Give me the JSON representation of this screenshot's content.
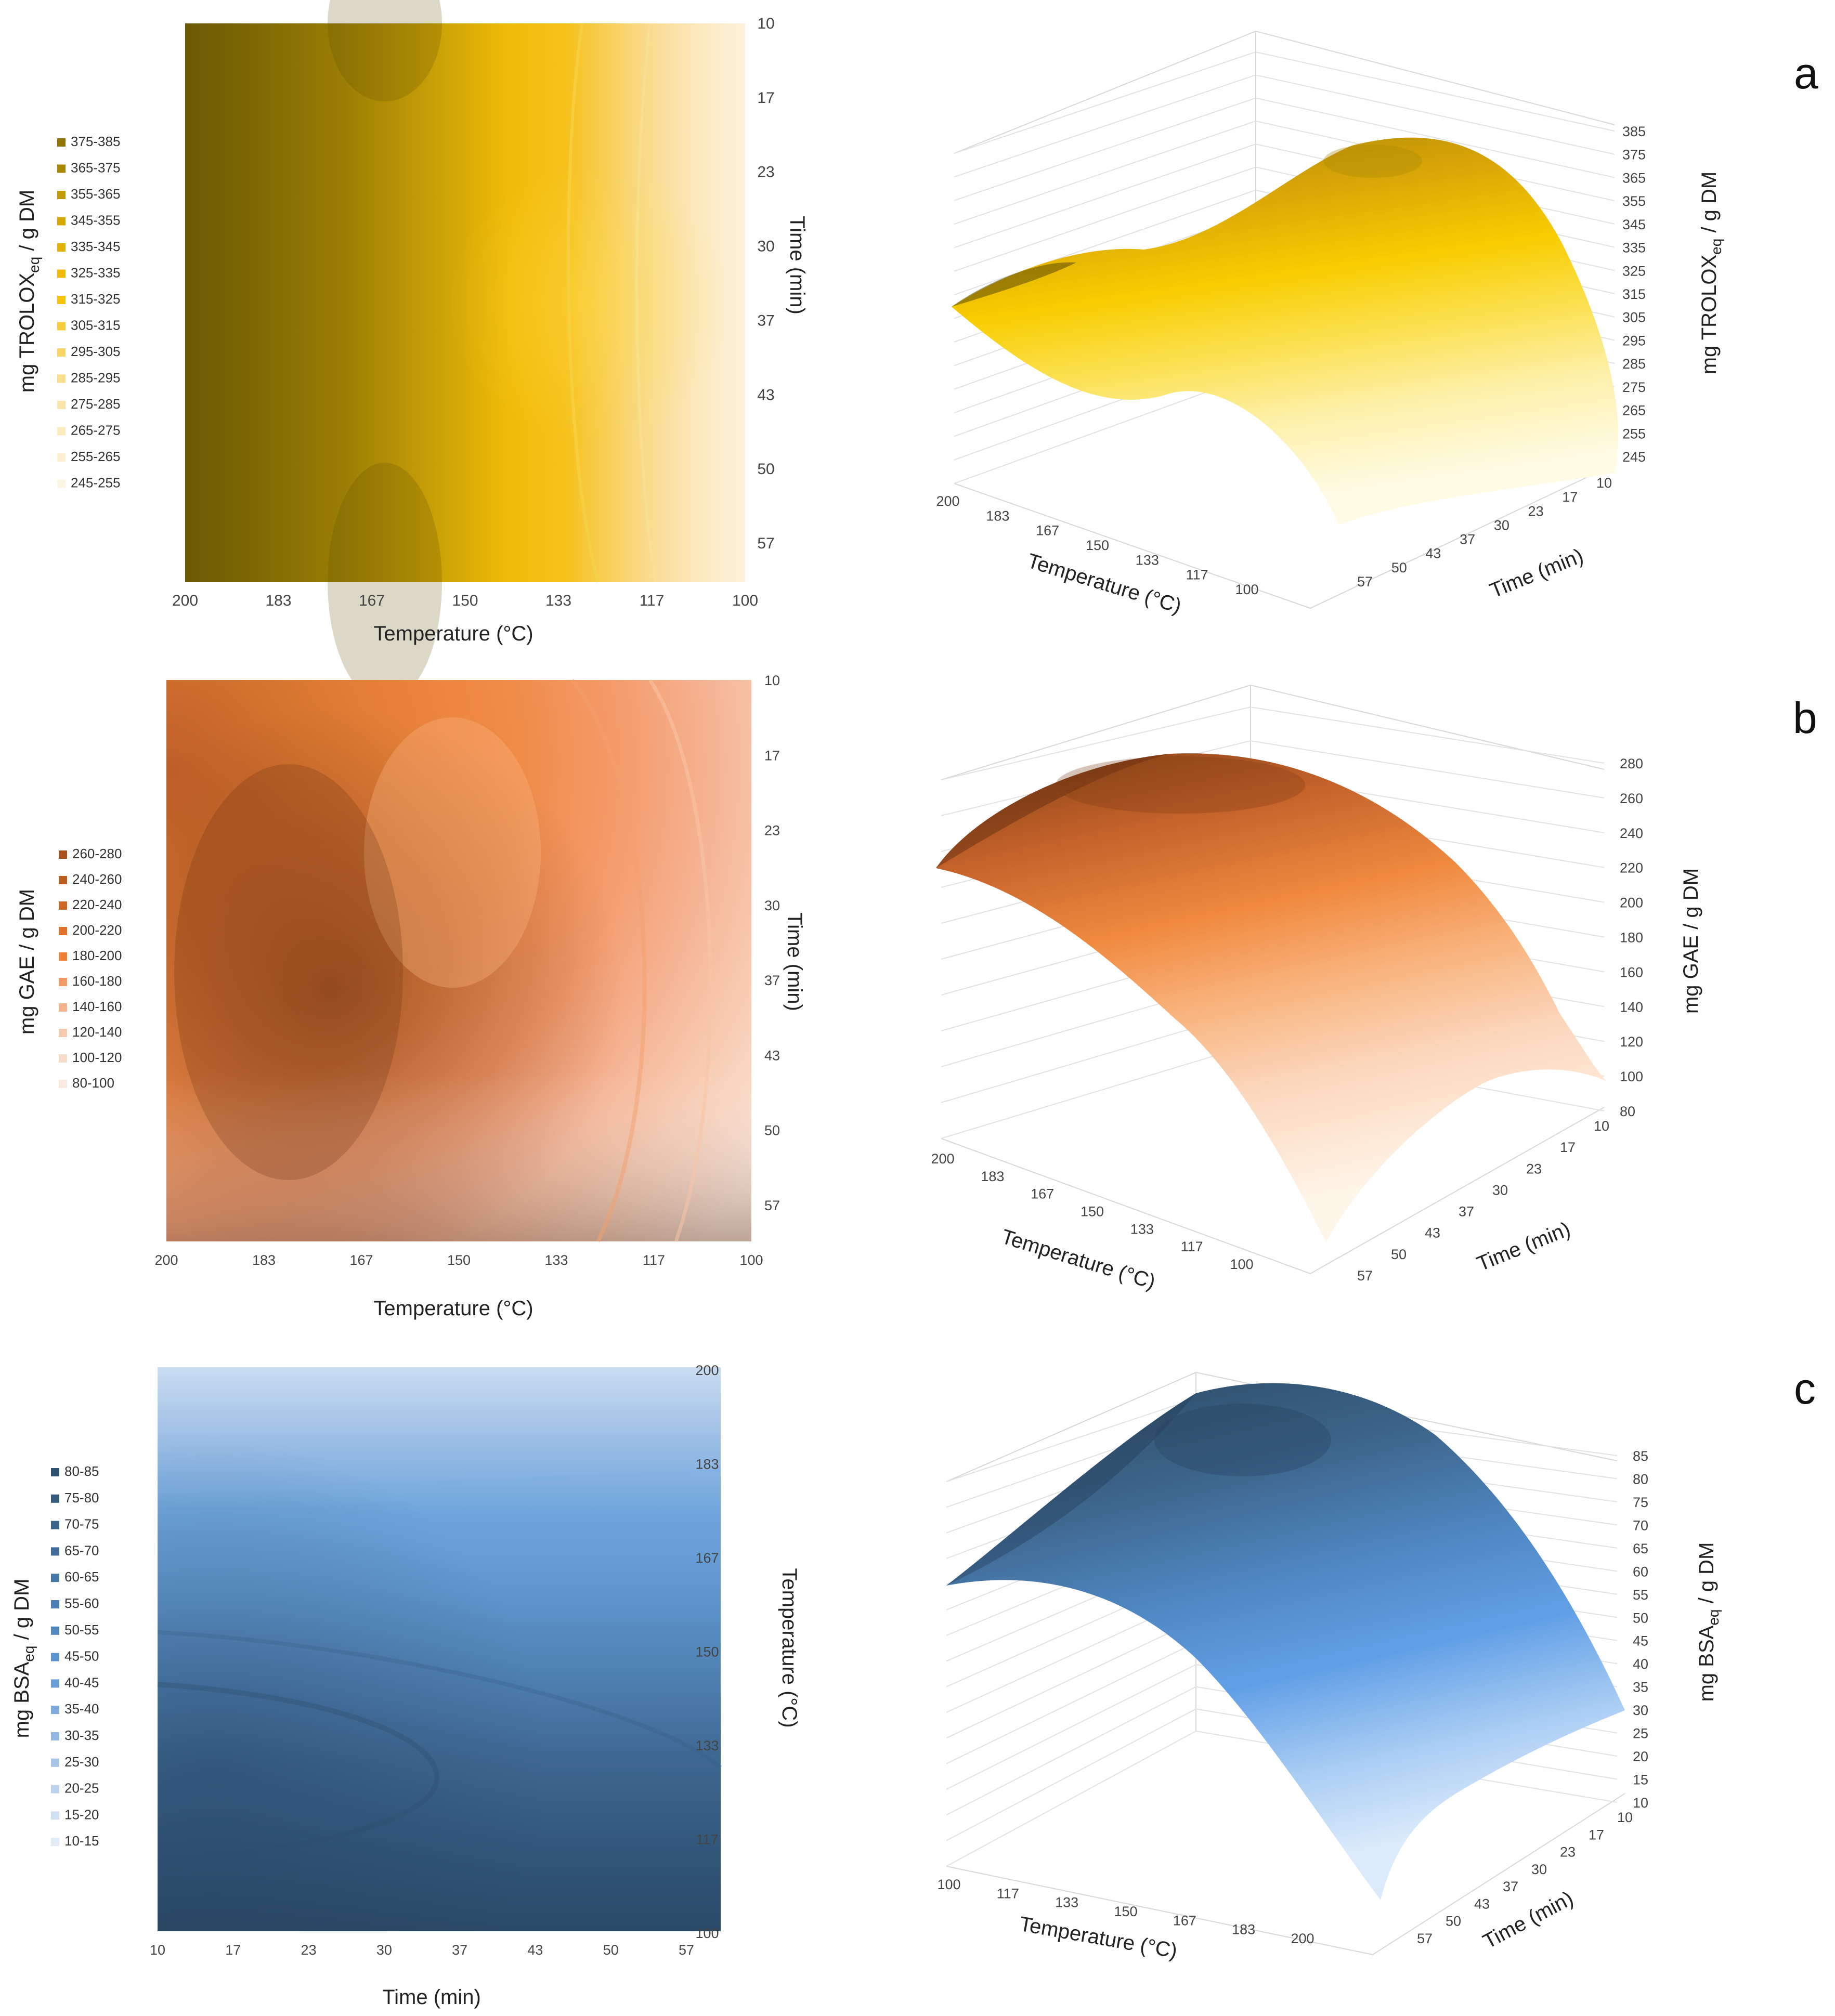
{
  "chart_data": [
    {
      "type": "heatmap",
      "panel": "a",
      "xlabel": "Temperature (°C)",
      "ylabel": "Time (min)",
      "zlabel_main": "mg TROLOX",
      "zlabel_sub": "eq",
      "zlabel_tail": " / g DM",
      "x_ticks": [
        "200",
        "183",
        "167",
        "150",
        "133",
        "117",
        "100"
      ],
      "y_ticks": [
        "10",
        "17",
        "23",
        "30",
        "37",
        "43",
        "50",
        "57"
      ],
      "xlim": [
        200,
        100
      ],
      "ylim": [
        10,
        60
      ],
      "legend": [
        "375-385",
        "365-375",
        "355-365",
        "345-355",
        "335-345",
        "325-335",
        "315-325",
        "305-315",
        "295-305",
        "285-295",
        "275-285",
        "265-275",
        "255-265",
        "245-255"
      ],
      "legend_colors": [
        "#8f7303",
        "#a98702",
        "#c29a04",
        "#d6a805",
        "#e3b208",
        "#efba0a",
        "#f6c30d",
        "#f7cc3a",
        "#f8d565",
        "#f9de8b",
        "#fae5a8",
        "#fbebbf",
        "#fcf0d3",
        "#fdf5e3"
      ],
      "zlim": [
        245,
        385
      ]
    },
    {
      "type": "surface3d",
      "panel": "a",
      "xlabel": "Temperature (°C)",
      "ylabel": "Time (min)",
      "zlabel_main": "mg TROLOX",
      "zlabel_sub": "eq",
      "zlabel_tail": " / g DM",
      "x_ticks": [
        "200",
        "183",
        "167",
        "150",
        "133",
        "117",
        "100"
      ],
      "y_ticks": [
        "10",
        "17",
        "23",
        "30",
        "37",
        "43",
        "50",
        "57"
      ],
      "z_ticks": [
        "385",
        "375",
        "365",
        "355",
        "345",
        "335",
        "325",
        "315",
        "305",
        "295",
        "285",
        "275",
        "265",
        "255",
        "245"
      ],
      "zlim": [
        245,
        385
      ]
    },
    {
      "type": "heatmap",
      "panel": "b",
      "xlabel": "Temperature (°C)",
      "ylabel": "Time (min)",
      "zlabel_main": "mg GAE / g DM",
      "x_ticks": [
        "200",
        "183",
        "167",
        "150",
        "133",
        "117",
        "100"
      ],
      "y_ticks": [
        "10",
        "17",
        "23",
        "30",
        "37",
        "43",
        "50",
        "57"
      ],
      "xlim": [
        200,
        100
      ],
      "ylim": [
        10,
        60
      ],
      "legend": [
        "260-280",
        "240-260",
        "220-240",
        "200-220",
        "180-200",
        "160-180",
        "140-160",
        "120-140",
        "100-120",
        "80-100"
      ],
      "legend_colors": [
        "#a9521d",
        "#bc5c20",
        "#cf6624",
        "#e0702a",
        "#f08038",
        "#f39a66",
        "#f4b38f",
        "#f6c9b0",
        "#f8dccb",
        "#fbeae0"
      ],
      "zlim": [
        80,
        280
      ]
    },
    {
      "type": "surface3d",
      "panel": "b",
      "xlabel": "Temperature (°C)",
      "ylabel": "Time (min)",
      "zlabel_main": "mg GAE / g DM",
      "x_ticks": [
        "200",
        "183",
        "167",
        "150",
        "133",
        "117",
        "100"
      ],
      "y_ticks": [
        "10",
        "17",
        "23",
        "30",
        "37",
        "43",
        "50",
        "57"
      ],
      "z_ticks": [
        "280",
        "260",
        "240",
        "220",
        "200",
        "180",
        "160",
        "140",
        "120",
        "100",
        "80"
      ],
      "zlim": [
        80,
        280
      ]
    },
    {
      "type": "heatmap",
      "panel": "c",
      "xlabel": "Time (min)",
      "ylabel": "Temperature (°C)",
      "zlabel_main": "mg BSA",
      "zlabel_sub": "eq",
      "zlabel_tail": " / g DM",
      "x_ticks": [
        "10",
        "17",
        "23",
        "30",
        "37",
        "43",
        "50",
        "57"
      ],
      "y_ticks": [
        "200",
        "183",
        "167",
        "150",
        "133",
        "117",
        "100"
      ],
      "xlim": [
        10,
        60
      ],
      "ylim": [
        200,
        100
      ],
      "legend": [
        "80-85",
        "75-80",
        "70-75",
        "65-70",
        "60-65",
        "55-60",
        "50-55",
        "45-50",
        "40-45",
        "35-40",
        "30-35",
        "25-30",
        "20-25",
        "15-20",
        "10-15"
      ],
      "legend_colors": [
        "#2f5272",
        "#355b7e",
        "#3b648b",
        "#416e98",
        "#4777a6",
        "#4d80b4",
        "#5389c2",
        "#5b93ce",
        "#6a9ed6",
        "#7eaadc",
        "#93b7e1",
        "#a8c5e7",
        "#bcd2ec",
        "#d0e0f2",
        "#e2ecf7"
      ],
      "zlim": [
        10,
        85
      ]
    },
    {
      "type": "surface3d",
      "panel": "c",
      "xlabel": "Temperature (°C)",
      "ylabel": "Time (min)",
      "zlabel_main": "mg BSA",
      "zlabel_sub": "eq",
      "zlabel_tail": " / g DM",
      "x_ticks": [
        "100",
        "117",
        "133",
        "150",
        "167",
        "183",
        "200"
      ],
      "y_ticks": [
        "10",
        "17",
        "23",
        "30",
        "37",
        "43",
        "50",
        "57"
      ],
      "z_ticks": [
        "85",
        "80",
        "75",
        "70",
        "65",
        "60",
        "55",
        "50",
        "45",
        "40",
        "35",
        "30",
        "25",
        "20",
        "15",
        "10"
      ],
      "zlim": [
        10,
        85
      ]
    }
  ],
  "panel_letters": [
    "a",
    "b",
    "c"
  ]
}
